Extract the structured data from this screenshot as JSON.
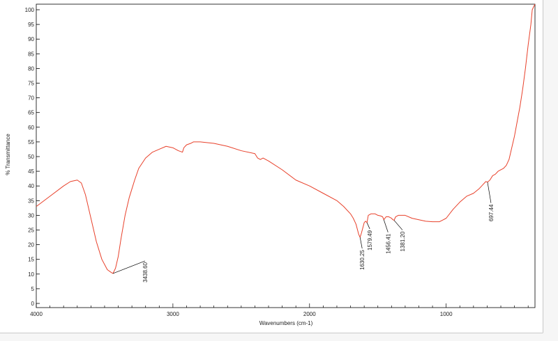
{
  "chart_data": {
    "type": "line",
    "title": "",
    "xlabel": "Wavenumbers (cm-1)",
    "ylabel": "% Transmittance",
    "xlim": [
      4000,
      350
    ],
    "ylim": [
      0,
      100
    ],
    "x_reversed": true,
    "x_ticks": [
      4000,
      3000,
      2000,
      1000
    ],
    "y_ticks": [
      0,
      5,
      10,
      15,
      20,
      25,
      30,
      35,
      40,
      45,
      50,
      55,
      60,
      65,
      70,
      75,
      80,
      85,
      90,
      95,
      100
    ],
    "grid": false,
    "line_color": "#e8402a",
    "series": [
      {
        "x": [
          4000,
          3900,
          3800,
          3750,
          3700,
          3670,
          3640,
          3600,
          3560,
          3520,
          3480,
          3450,
          3438.6,
          3420,
          3400,
          3380,
          3350,
          3320,
          3300,
          3280,
          3250,
          3200,
          3150,
          3100,
          3050,
          3000,
          2960,
          2930,
          2920,
          2900,
          2870,
          2850,
          2800,
          2700,
          2600,
          2500,
          2400,
          2380,
          2360,
          2340,
          2300,
          2200,
          2100,
          2000,
          1900,
          1800,
          1750,
          1700,
          1680,
          1660,
          1640,
          1630.25,
          1620,
          1600,
          1590,
          1579.49,
          1570,
          1550,
          1520,
          1500,
          1480,
          1465,
          1456.41,
          1440,
          1420,
          1400,
          1390,
          1381.2,
          1370,
          1350,
          1300,
          1250,
          1200,
          1150,
          1100,
          1050,
          1000,
          950,
          900,
          850,
          800,
          760,
          730,
          710,
          697.44,
          680,
          660,
          640,
          620,
          600,
          580,
          560,
          540,
          520,
          500,
          480,
          460,
          440,
          420,
          400,
          380,
          370,
          360,
          350
        ],
        "y": [
          33,
          36.5,
          40,
          41.5,
          42,
          41,
          37,
          29,
          21,
          15,
          11.5,
          10.5,
          10.2,
          12,
          16,
          22,
          30,
          36,
          39,
          42,
          46,
          49.5,
          51.5,
          52.5,
          53.5,
          53,
          52,
          51.5,
          53,
          54,
          54.5,
          55,
          55,
          54.5,
          53.5,
          52,
          51,
          49.5,
          49,
          49.5,
          48.5,
          45.5,
          42,
          40,
          37.5,
          35,
          33,
          30.5,
          29,
          27,
          23.5,
          22.5,
          24,
          27.5,
          28,
          27.5,
          30,
          30.5,
          30.5,
          30,
          29.8,
          29.5,
          28.5,
          29.5,
          29.5,
          29,
          28.5,
          28.3,
          29.5,
          30,
          30,
          29,
          28.5,
          28,
          27.8,
          27.8,
          29,
          32,
          34.5,
          36.5,
          37.5,
          39,
          40.5,
          41.5,
          41.3,
          42,
          43.5,
          44,
          45,
          45.5,
          46,
          47,
          49,
          53,
          57,
          62,
          67,
          73,
          80,
          88,
          95,
          100,
          101,
          102
        ]
      }
    ],
    "annotations": [
      {
        "x": 3438.6,
        "y": 10.2,
        "label": "3438.60"
      },
      {
        "x": 1630.25,
        "y": 22.5,
        "label": "1630.25"
      },
      {
        "x": 1579.49,
        "y": 27.5,
        "label": "1579.49"
      },
      {
        "x": 1456.41,
        "y": 28.5,
        "label": "1456.41"
      },
      {
        "x": 1381.2,
        "y": 28.3,
        "label": "1381.20"
      },
      {
        "x": 697.44,
        "y": 41.3,
        "label": "697.44"
      }
    ]
  }
}
